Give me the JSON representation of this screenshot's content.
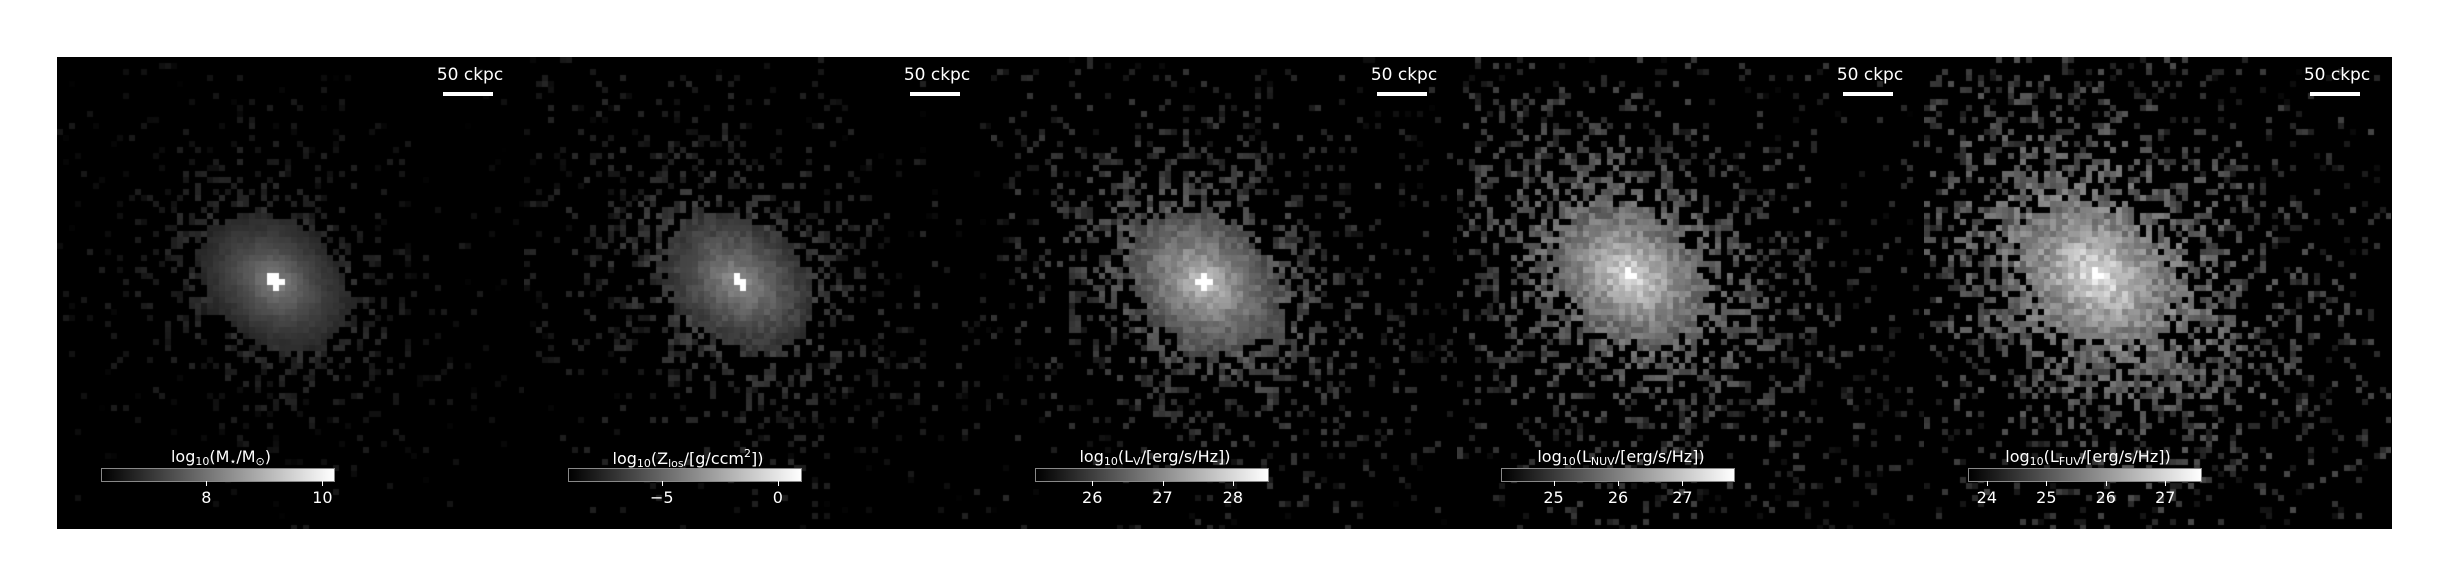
{
  "figure": {
    "scale_bar_label": "50 ckpc",
    "panels": [
      {
        "id": "mass",
        "cbar_label": {
          "pre": "log",
          "sub1": "10",
          "open": "(",
          "var": "M",
          "varsub": "⋆",
          "mid": "/",
          "var2": "M",
          "var2sub": "⊙",
          "close": ")"
        },
        "cbar_range": [
          6.2,
          10.2
        ],
        "ticks": [
          {
            "value": 8,
            "label": "8"
          },
          {
            "value": 10,
            "label": "10"
          }
        ],
        "intensity": 0.55
      },
      {
        "id": "metallicity",
        "cbar_label": {
          "pre": "log",
          "sub1": "10",
          "open": "(",
          "var": "Z",
          "varsub": "los",
          "mid": "/[g/ccm",
          "sup": "2",
          "close": "])"
        },
        "cbar_range": [
          -9.0,
          1.0
        ],
        "ticks": [
          {
            "value": -5,
            "label": "−5"
          },
          {
            "value": 0,
            "label": "0"
          }
        ],
        "intensity": 0.6
      },
      {
        "id": "lum-v",
        "cbar_label": {
          "pre": "log",
          "sub1": "10",
          "open": "(",
          "var": "L",
          "varsub": "V",
          "mid": "/[erg/s/Hz]",
          "close": ")"
        },
        "cbar_range": [
          25.2,
          28.5
        ],
        "ticks": [
          {
            "value": 26,
            "label": "26"
          },
          {
            "value": 27,
            "label": "27"
          },
          {
            "value": 28,
            "label": "28"
          }
        ],
        "intensity": 0.8
      },
      {
        "id": "lum-nuv",
        "cbar_label": {
          "pre": "log",
          "sub1": "10",
          "open": "(",
          "var": "L",
          "varsub": "NUV",
          "mid": "/[erg/s/Hz]",
          "close": ")"
        },
        "cbar_range": [
          24.2,
          27.8
        ],
        "ticks": [
          {
            "value": 25,
            "label": "25"
          },
          {
            "value": 26,
            "label": "26"
          },
          {
            "value": 27,
            "label": "27"
          }
        ],
        "intensity": 0.9
      },
      {
        "id": "lum-fuv",
        "cbar_label": {
          "pre": "log",
          "sub1": "10",
          "open": "(",
          "var": "L",
          "varsub": "FUV",
          "mid": "/[erg/s/Hz]",
          "close": ")"
        },
        "cbar_range": [
          23.7,
          27.6
        ],
        "ticks": [
          {
            "value": 24,
            "label": "24"
          },
          {
            "value": 25,
            "label": "25"
          },
          {
            "value": 26,
            "label": "26"
          },
          {
            "value": 27,
            "label": "27"
          }
        ],
        "intensity": 0.95
      }
    ]
  }
}
